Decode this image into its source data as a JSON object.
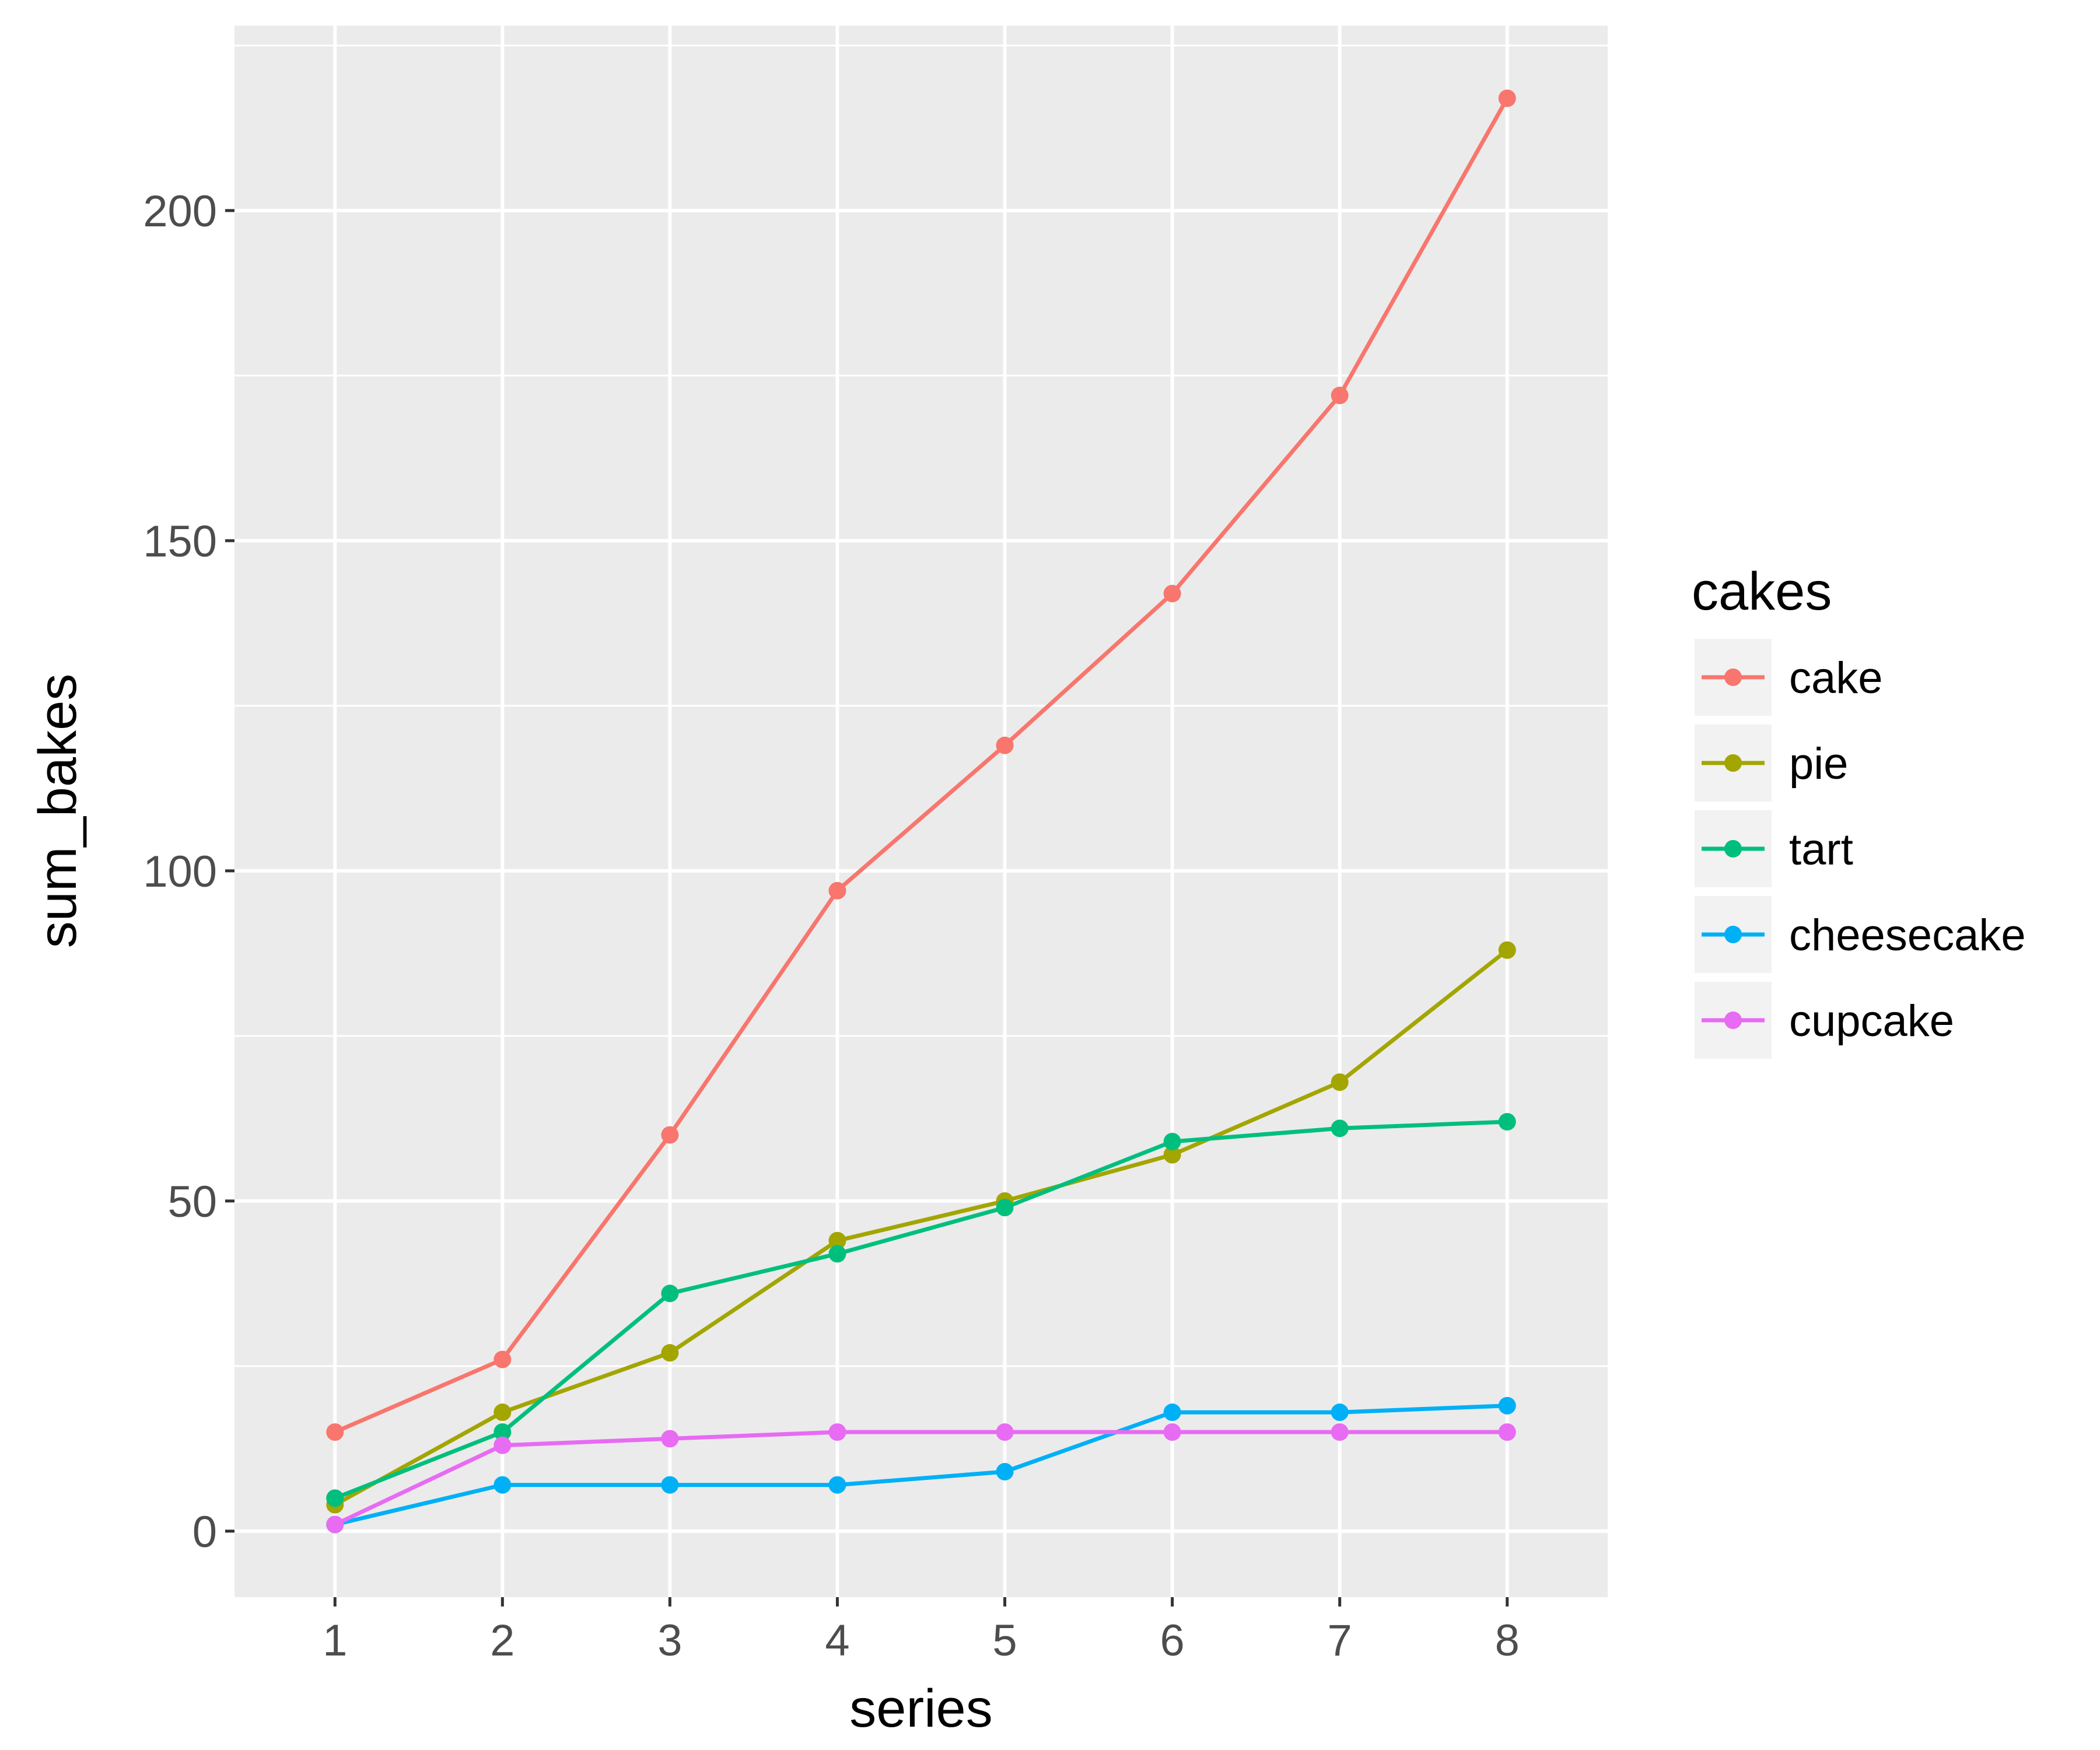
{
  "chart_data": {
    "type": "line",
    "title": "",
    "xlabel": "series",
    "ylabel": "sum_bakes",
    "x": [
      1,
      2,
      3,
      4,
      5,
      6,
      7,
      8
    ],
    "xlim": [
      0.4,
      8.6
    ],
    "ylim": [
      -10,
      228
    ],
    "yticks": [
      0,
      50,
      100,
      150,
      200
    ],
    "grid": true,
    "legend": {
      "title": "cakes",
      "position": "right"
    },
    "series": [
      {
        "name": "cake",
        "color": "#F8766D",
        "values": [
          15,
          26,
          60,
          97,
          119,
          142,
          172,
          217
        ]
      },
      {
        "name": "pie",
        "color": "#A3A500",
        "values": [
          4,
          18,
          27,
          44,
          50,
          57,
          68,
          88
        ]
      },
      {
        "name": "tart",
        "color": "#00BF7D",
        "values": [
          5,
          15,
          36,
          42,
          49,
          59,
          61,
          62
        ]
      },
      {
        "name": "cheesecake",
        "color": "#00B0F6",
        "values": [
          1,
          7,
          7,
          7,
          9,
          18,
          18,
          19
        ]
      },
      {
        "name": "cupcake",
        "color": "#E76BF3",
        "values": [
          1,
          13,
          14,
          15,
          15,
          15,
          15,
          15
        ]
      }
    ]
  }
}
